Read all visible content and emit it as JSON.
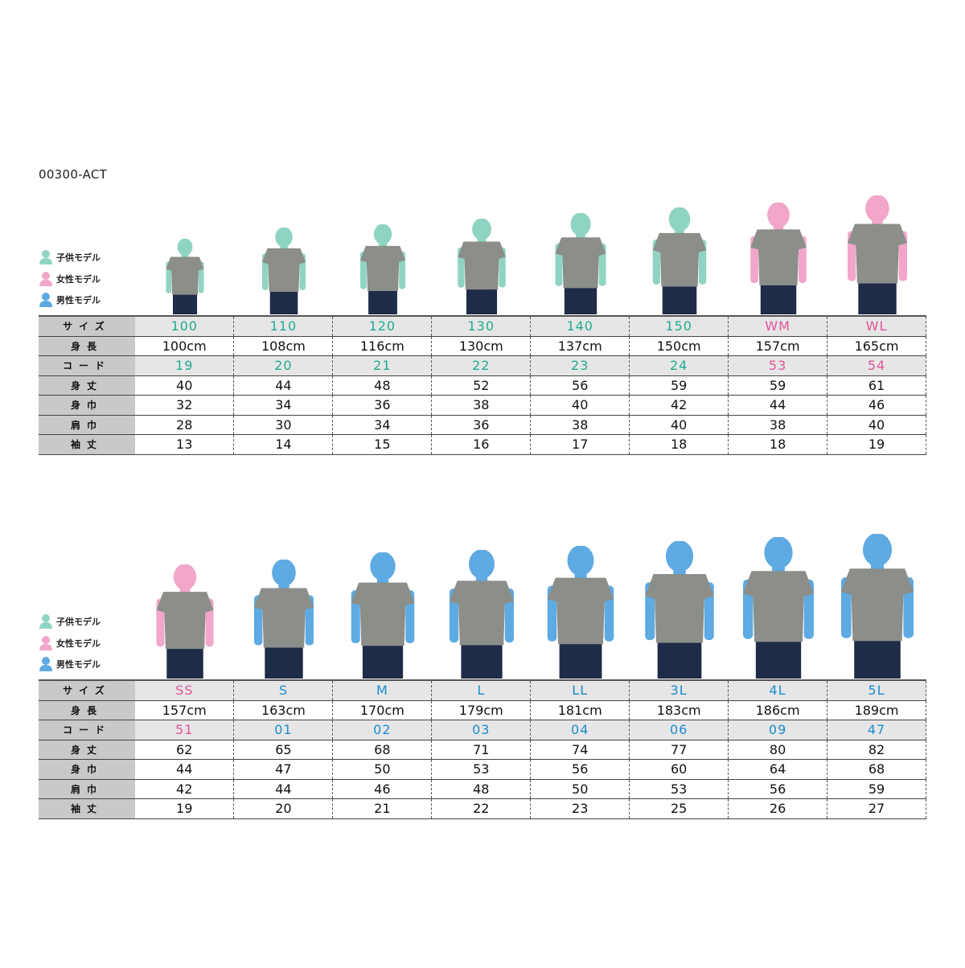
{
  "product_code": "00300-ACT",
  "colors": {
    "kid": "#1fab91",
    "female": "#e2569d",
    "male": "#1b8cce",
    "kid_figure": "#8fd4c2",
    "female_figure": "#f2a6c9",
    "male_figure": "#5eaae2",
    "shirt": "#8b8e89",
    "jeans": "#1f2c48"
  },
  "legend": [
    {
      "label": "子供モデル",
      "model": "kid"
    },
    {
      "label": "女性モデル",
      "model": "female"
    },
    {
      "label": "男性モデル",
      "model": "male"
    }
  ],
  "row_labels": [
    "サイズ",
    "身長",
    "コード",
    "身丈",
    "身巾",
    "肩巾",
    "袖丈"
  ],
  "tables": [
    {
      "models": [
        "kid",
        "kid",
        "kid",
        "kid",
        "kid",
        "kid",
        "female",
        "female"
      ],
      "rows": [
        [
          "100",
          "110",
          "120",
          "130",
          "140",
          "150",
          "WM",
          "WL"
        ],
        [
          "100cm",
          "108cm",
          "116cm",
          "130cm",
          "137cm",
          "150cm",
          "157cm",
          "165cm"
        ],
        [
          "19",
          "20",
          "21",
          "22",
          "23",
          "24",
          "53",
          "54"
        ],
        [
          "40",
          "44",
          "48",
          "52",
          "56",
          "59",
          "59",
          "61"
        ],
        [
          "32",
          "34",
          "36",
          "38",
          "40",
          "42",
          "44",
          "46"
        ],
        [
          "28",
          "30",
          "34",
          "36",
          "38",
          "40",
          "38",
          "40"
        ],
        [
          "13",
          "14",
          "15",
          "16",
          "17",
          "18",
          "18",
          "19"
        ]
      ]
    },
    {
      "models": [
        "female",
        "male",
        "male",
        "male",
        "male",
        "male",
        "male",
        "male"
      ],
      "rows": [
        [
          "SS",
          "S",
          "M",
          "L",
          "LL",
          "3L",
          "4L",
          "5L"
        ],
        [
          "157cm",
          "163cm",
          "170cm",
          "179cm",
          "181cm",
          "183cm",
          "186cm",
          "189cm"
        ],
        [
          "51",
          "01",
          "02",
          "03",
          "04",
          "06",
          "09",
          "47"
        ],
        [
          "62",
          "65",
          "68",
          "71",
          "74",
          "77",
          "80",
          "82"
        ],
        [
          "44",
          "47",
          "50",
          "53",
          "56",
          "60",
          "64",
          "68"
        ],
        [
          "42",
          "44",
          "46",
          "48",
          "50",
          "53",
          "56",
          "59"
        ],
        [
          "19",
          "20",
          "21",
          "22",
          "23",
          "25",
          "26",
          "27"
        ]
      ]
    }
  ]
}
